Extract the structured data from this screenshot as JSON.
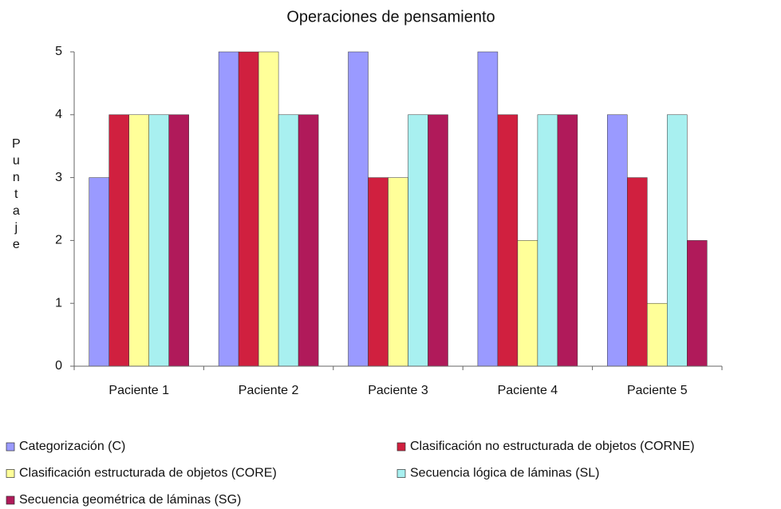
{
  "chart_data": {
    "type": "bar",
    "title": "Operaciones de pensamiento",
    "y_label": "Puntaje",
    "categories": [
      "Paciente 1",
      "Paciente 2",
      "Paciente 3",
      "Paciente 4",
      "Paciente 5"
    ],
    "series": [
      {
        "name": "Categorización (C)",
        "color": "#9a9aff",
        "values": [
          3,
          5,
          5,
          5,
          4
        ]
      },
      {
        "name": "Clasificación no estructurada de objetos (CORNE)",
        "color": "#d0203f",
        "values": [
          4,
          5,
          3,
          4,
          3
        ]
      },
      {
        "name": "Clasificación estructurada de objetos (CORE)",
        "color": "#ffff99",
        "values": [
          4,
          5,
          3,
          2,
          1
        ]
      },
      {
        "name": "Secuencia lógica de láminas (SL)",
        "color": "#a8f0f0",
        "values": [
          4,
          4,
          4,
          4,
          4
        ]
      },
      {
        "name": "Secuencia geométrica de láminas (SG)",
        "color": "#b01a5a",
        "values": [
          4,
          4,
          4,
          4,
          2
        ]
      }
    ],
    "ylim": [
      0,
      5
    ],
    "yticks": [
      0,
      1,
      2,
      3,
      4,
      5
    ],
    "grid": false
  }
}
